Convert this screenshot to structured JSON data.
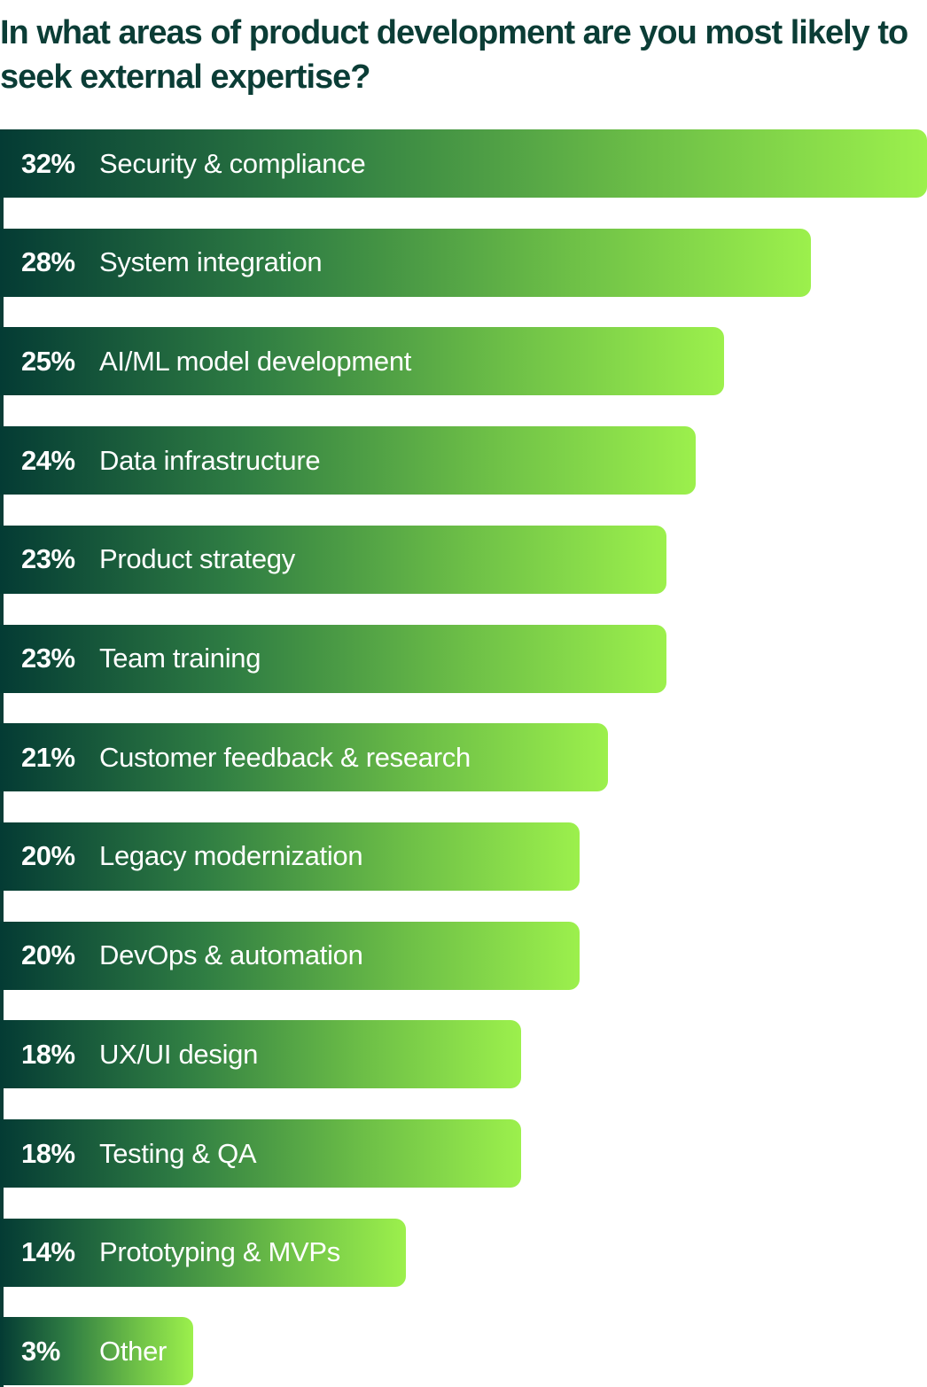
{
  "chart_data": {
    "type": "bar",
    "orientation": "horizontal",
    "title": "In what areas of product development are you most likely to seek external expertise?",
    "value_suffix": "%",
    "xlim": [
      0,
      32
    ],
    "grid": false,
    "legend": "none",
    "colors": {
      "bar_start": "#043b34",
      "bar_end": "#9cf04c",
      "title": "#0b3d36"
    },
    "categories": [
      "Security & compliance",
      "System integration",
      "AI/ML model development",
      "Data infrastructure",
      "Product strategy",
      "Team training",
      "Customer feedback & research",
      "Legacy modernization",
      "DevOps & automation",
      "UX/UI design",
      "Testing & QA",
      "Prototyping & MVPs",
      "Other"
    ],
    "values": [
      32,
      28,
      25,
      24,
      23,
      23,
      21,
      20,
      20,
      18,
      18,
      14,
      3
    ],
    "value_labels": [
      "32%",
      "28%",
      "25%",
      "24%",
      "23%",
      "23%",
      "21%",
      "20%",
      "20%",
      "18%",
      "18%",
      "14%",
      "3%"
    ]
  }
}
